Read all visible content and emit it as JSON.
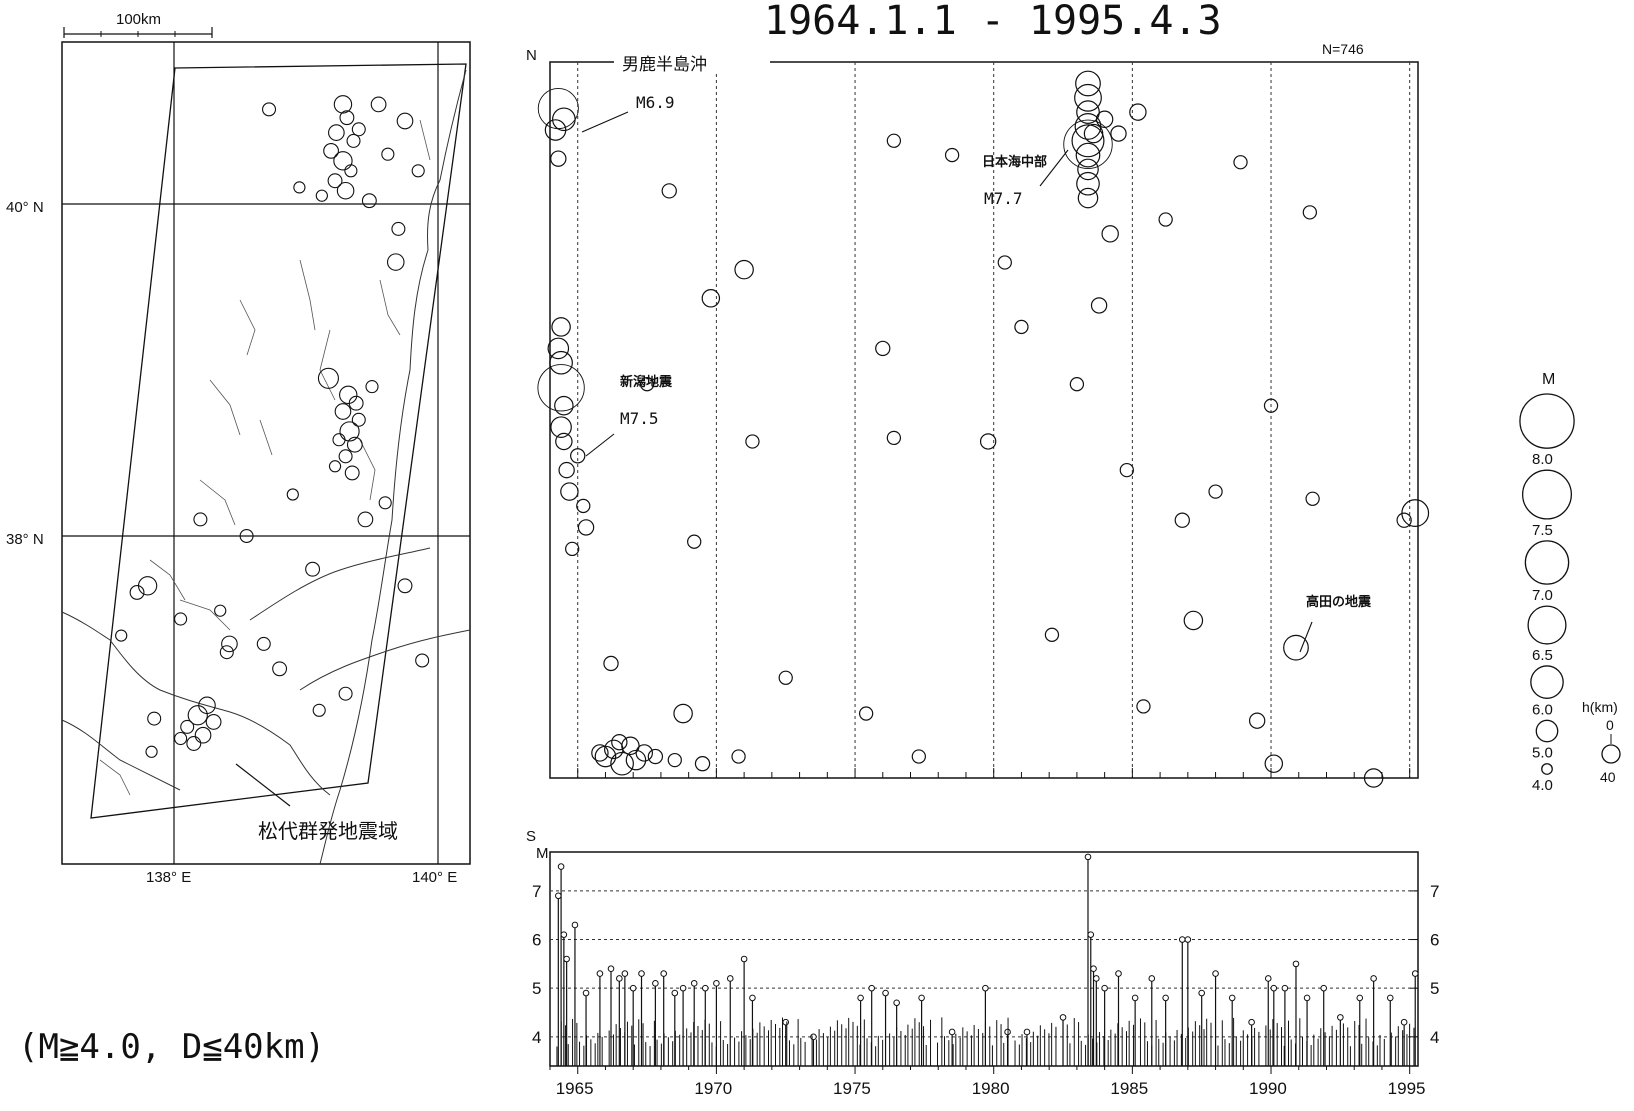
{
  "chart_data": [
    {
      "type": "scatter",
      "name": "epicenter-map",
      "scale_bar_label": "100km",
      "lat_labels": [
        "40° N",
        "38° N"
      ],
      "lon_labels": [
        "138° E",
        "140° E"
      ],
      "annotation": "松代群発地震域",
      "points": [
        {
          "lon": 139.28,
          "lat": 40.6,
          "m": 5.0
        },
        {
          "lon": 139.31,
          "lat": 40.52,
          "m": 4.6
        },
        {
          "lon": 139.23,
          "lat": 40.43,
          "m": 4.8
        },
        {
          "lon": 139.36,
          "lat": 40.38,
          "m": 4.5
        },
        {
          "lon": 139.19,
          "lat": 40.32,
          "m": 4.7
        },
        {
          "lon": 139.28,
          "lat": 40.26,
          "m": 5.1
        },
        {
          "lon": 139.34,
          "lat": 40.2,
          "m": 4.4
        },
        {
          "lon": 139.22,
          "lat": 40.14,
          "m": 4.6
        },
        {
          "lon": 139.3,
          "lat": 40.08,
          "m": 4.9
        },
        {
          "lon": 139.12,
          "lat": 40.05,
          "m": 4.3
        },
        {
          "lon": 139.4,
          "lat": 40.45,
          "m": 4.5
        },
        {
          "lon": 139.55,
          "lat": 40.6,
          "m": 4.7
        },
        {
          "lon": 138.72,
          "lat": 40.57,
          "m": 4.5
        },
        {
          "lon": 139.62,
          "lat": 40.3,
          "m": 4.4
        },
        {
          "lon": 138.95,
          "lat": 40.1,
          "m": 4.3
        },
        {
          "lon": 139.75,
          "lat": 40.5,
          "m": 4.8
        },
        {
          "lon": 139.48,
          "lat": 40.02,
          "m": 4.6
        },
        {
          "lon": 139.7,
          "lat": 39.85,
          "m": 4.5
        },
        {
          "lon": 139.85,
          "lat": 40.2,
          "m": 4.4
        },
        {
          "lon": 139.68,
          "lat": 39.65,
          "m": 4.9
        },
        {
          "lon": 139.32,
          "lat": 38.85,
          "m": 5.0
        },
        {
          "lon": 139.38,
          "lat": 38.8,
          "m": 4.6
        },
        {
          "lon": 139.28,
          "lat": 38.75,
          "m": 4.8
        },
        {
          "lon": 139.4,
          "lat": 38.7,
          "m": 4.5
        },
        {
          "lon": 139.33,
          "lat": 38.63,
          "m": 5.2
        },
        {
          "lon": 139.25,
          "lat": 38.58,
          "m": 4.4
        },
        {
          "lon": 139.37,
          "lat": 38.55,
          "m": 4.7
        },
        {
          "lon": 139.3,
          "lat": 38.48,
          "m": 4.5
        },
        {
          "lon": 139.22,
          "lat": 38.42,
          "m": 4.3
        },
        {
          "lon": 139.35,
          "lat": 38.38,
          "m": 4.6
        },
        {
          "lon": 139.17,
          "lat": 38.95,
          "m": 5.3
        },
        {
          "lon": 139.5,
          "lat": 38.9,
          "m": 4.4
        },
        {
          "lon": 139.45,
          "lat": 38.1,
          "m": 4.7
        },
        {
          "lon": 138.55,
          "lat": 38.0,
          "m": 4.5
        },
        {
          "lon": 137.8,
          "lat": 37.7,
          "m": 5.1
        },
        {
          "lon": 137.72,
          "lat": 37.66,
          "m": 4.6
        },
        {
          "lon": 137.6,
          "lat": 37.4,
          "m": 4.3
        },
        {
          "lon": 138.42,
          "lat": 37.35,
          "m": 4.8
        },
        {
          "lon": 138.4,
          "lat": 37.3,
          "m": 4.5
        },
        {
          "lon": 138.05,
          "lat": 37.5,
          "m": 4.4
        },
        {
          "lon": 138.68,
          "lat": 37.35,
          "m": 4.5
        },
        {
          "lon": 138.8,
          "lat": 37.2,
          "m": 4.6
        },
        {
          "lon": 138.25,
          "lat": 36.98,
          "m": 4.9
        },
        {
          "lon": 138.18,
          "lat": 36.92,
          "m": 5.2
        },
        {
          "lon": 138.3,
          "lat": 36.88,
          "m": 4.7
        },
        {
          "lon": 138.1,
          "lat": 36.85,
          "m": 4.5
        },
        {
          "lon": 138.22,
          "lat": 36.8,
          "m": 4.8
        },
        {
          "lon": 138.05,
          "lat": 36.78,
          "m": 4.4
        },
        {
          "lon": 138.15,
          "lat": 36.75,
          "m": 4.6
        },
        {
          "lon": 137.85,
          "lat": 36.9,
          "m": 4.5
        },
        {
          "lon": 137.83,
          "lat": 36.7,
          "m": 4.3
        },
        {
          "lon": 139.1,
          "lat": 36.95,
          "m": 4.4
        },
        {
          "lon": 139.3,
          "lat": 37.05,
          "m": 4.5
        },
        {
          "lon": 139.75,
          "lat": 37.7,
          "m": 4.6
        },
        {
          "lon": 139.88,
          "lat": 37.25,
          "m": 4.5
        },
        {
          "lon": 138.35,
          "lat": 37.55,
          "m": 4.3
        },
        {
          "lon": 139.05,
          "lat": 37.8,
          "m": 4.6
        },
        {
          "lon": 139.6,
          "lat": 38.2,
          "m": 4.4
        },
        {
          "lon": 138.9,
          "lat": 38.25,
          "m": 4.3
        },
        {
          "lon": 138.2,
          "lat": 38.1,
          "m": 4.5
        }
      ]
    },
    {
      "type": "scatter",
      "name": "space-time-diagram",
      "title": "1964.1.1 - 1995.4.3",
      "count_label": "N=746",
      "ylabel_top": "N",
      "ylabel_bottom": "S",
      "xlim": [
        1964.0,
        1995.3
      ],
      "ylim": [
        0,
        1
      ],
      "region_label": "男鹿半島沖",
      "annotations": [
        {
          "text": "M6.9",
          "x": 1964.3,
          "y": 0.935
        },
        {
          "text": "新潟地震",
          "x": 1964.4,
          "y": 0.545
        },
        {
          "text": "M7.5",
          "x": 1964.4,
          "y": 0.545
        },
        {
          "text": "日本海中部",
          "x": 1983.4,
          "y": 0.885
        },
        {
          "text": "M7.7",
          "x": 1983.4,
          "y": 0.885
        },
        {
          "text": "高田の地震",
          "x": 1990.9,
          "y": 0.182
        }
      ],
      "points": [
        {
          "x": 1964.3,
          "y": 0.935,
          "m": 6.9
        },
        {
          "x": 1964.2,
          "y": 0.905,
          "m": 5.0
        },
        {
          "x": 1964.5,
          "y": 0.92,
          "m": 5.2
        },
        {
          "x": 1964.3,
          "y": 0.865,
          "m": 4.5
        },
        {
          "x": 1964.4,
          "y": 0.545,
          "m": 7.5
        },
        {
          "x": 1964.3,
          "y": 0.6,
          "m": 5.0
        },
        {
          "x": 1964.4,
          "y": 0.58,
          "m": 5.2
        },
        {
          "x": 1964.5,
          "y": 0.52,
          "m": 4.8
        },
        {
          "x": 1964.4,
          "y": 0.49,
          "m": 5.0
        },
        {
          "x": 1964.5,
          "y": 0.47,
          "m": 4.6
        },
        {
          "x": 1964.4,
          "y": 0.63,
          "m": 4.8
        },
        {
          "x": 1964.6,
          "y": 0.43,
          "m": 4.5
        },
        {
          "x": 1964.7,
          "y": 0.4,
          "m": 4.7
        },
        {
          "x": 1965.0,
          "y": 0.45,
          "m": 4.4
        },
        {
          "x": 1965.2,
          "y": 0.38,
          "m": 4.3
        },
        {
          "x": 1965.3,
          "y": 0.35,
          "m": 4.5
        },
        {
          "x": 1964.8,
          "y": 0.32,
          "m": 4.3
        },
        {
          "x": 1966.0,
          "y": 0.03,
          "m": 5.0
        },
        {
          "x": 1966.3,
          "y": 0.04,
          "m": 4.8
        },
        {
          "x": 1966.6,
          "y": 0.02,
          "m": 5.2
        },
        {
          "x": 1966.9,
          "y": 0.045,
          "m": 4.7
        },
        {
          "x": 1967.1,
          "y": 0.025,
          "m": 4.9
        },
        {
          "x": 1967.4,
          "y": 0.035,
          "m": 4.6
        },
        {
          "x": 1966.5,
          "y": 0.05,
          "m": 4.5
        },
        {
          "x": 1965.8,
          "y": 0.035,
          "m": 4.6
        },
        {
          "x": 1967.8,
          "y": 0.03,
          "m": 4.4
        },
        {
          "x": 1968.5,
          "y": 0.025,
          "m": 4.3
        },
        {
          "x": 1969.5,
          "y": 0.02,
          "m": 4.4
        },
        {
          "x": 1970.8,
          "y": 0.03,
          "m": 4.3
        },
        {
          "x": 1968.8,
          "y": 0.09,
          "m": 4.8
        },
        {
          "x": 1969.8,
          "y": 0.67,
          "m": 4.7
        },
        {
          "x": 1971.0,
          "y": 0.71,
          "m": 4.8
        },
        {
          "x": 1968.3,
          "y": 0.82,
          "m": 4.4
        },
        {
          "x": 1967.5,
          "y": 0.55,
          "m": 4.3
        },
        {
          "x": 1969.2,
          "y": 0.33,
          "m": 4.3
        },
        {
          "x": 1971.3,
          "y": 0.47,
          "m": 4.3
        },
        {
          "x": 1976.4,
          "y": 0.475,
          "m": 4.3
        },
        {
          "x": 1976.0,
          "y": 0.6,
          "m": 4.4
        },
        {
          "x": 1976.4,
          "y": 0.89,
          "m": 4.3
        },
        {
          "x": 1978.5,
          "y": 0.87,
          "m": 4.3
        },
        {
          "x": 1979.8,
          "y": 0.47,
          "m": 4.5
        },
        {
          "x": 1980.4,
          "y": 0.72,
          "m": 4.3
        },
        {
          "x": 1981.0,
          "y": 0.63,
          "m": 4.3
        },
        {
          "x": 1983.4,
          "y": 0.885,
          "m": 7.7
        },
        {
          "x": 1983.4,
          "y": 0.97,
          "m": 5.4
        },
        {
          "x": 1983.4,
          "y": 0.95,
          "m": 5.6
        },
        {
          "x": 1983.4,
          "y": 0.93,
          "m": 5.2
        },
        {
          "x": 1983.4,
          "y": 0.91,
          "m": 5.5
        },
        {
          "x": 1983.4,
          "y": 0.89,
          "m": 6.1
        },
        {
          "x": 1983.4,
          "y": 0.87,
          "m": 5.3
        },
        {
          "x": 1983.4,
          "y": 0.85,
          "m": 5.0
        },
        {
          "x": 1983.4,
          "y": 0.83,
          "m": 5.2
        },
        {
          "x": 1983.4,
          "y": 0.81,
          "m": 4.9
        },
        {
          "x": 1983.6,
          "y": 0.9,
          "m": 4.8
        },
        {
          "x": 1984.0,
          "y": 0.92,
          "m": 4.6
        },
        {
          "x": 1984.5,
          "y": 0.9,
          "m": 4.5
        },
        {
          "x": 1985.2,
          "y": 0.93,
          "m": 4.6
        },
        {
          "x": 1984.2,
          "y": 0.76,
          "m": 4.6
        },
        {
          "x": 1983.8,
          "y": 0.66,
          "m": 4.5
        },
        {
          "x": 1984.8,
          "y": 0.43,
          "m": 4.3
        },
        {
          "x": 1983.0,
          "y": 0.55,
          "m": 4.3
        },
        {
          "x": 1987.2,
          "y": 0.22,
          "m": 4.8
        },
        {
          "x": 1986.8,
          "y": 0.36,
          "m": 4.4
        },
        {
          "x": 1988.0,
          "y": 0.4,
          "m": 4.3
        },
        {
          "x": 1989.5,
          "y": 0.08,
          "m": 4.5
        },
        {
          "x": 1990.0,
          "y": 0.52,
          "m": 4.3
        },
        {
          "x": 1990.1,
          "y": 0.02,
          "m": 4.7
        },
        {
          "x": 1990.9,
          "y": 0.182,
          "m": 5.4
        },
        {
          "x": 1991.5,
          "y": 0.39,
          "m": 4.3
        },
        {
          "x": 1991.4,
          "y": 0.79,
          "m": 4.3
        },
        {
          "x": 1993.7,
          "y": -0.01,
          "m": 4.8
        },
        {
          "x": 1995.2,
          "y": 0.37,
          "m": 5.6
        },
        {
          "x": 1994.8,
          "y": 0.36,
          "m": 4.4
        },
        {
          "x": 1966.2,
          "y": 0.16,
          "m": 4.4
        },
        {
          "x": 1972.5,
          "y": 0.14,
          "m": 4.3
        },
        {
          "x": 1975.4,
          "y": 0.09,
          "m": 4.3
        },
        {
          "x": 1977.3,
          "y": 0.03,
          "m": 4.3
        },
        {
          "x": 1982.1,
          "y": 0.2,
          "m": 4.3
        },
        {
          "x": 1985.4,
          "y": 0.1,
          "m": 4.3
        },
        {
          "x": 1986.2,
          "y": 0.78,
          "m": 4.3
        },
        {
          "x": 1988.9,
          "y": 0.86,
          "m": 4.3
        }
      ]
    },
    {
      "type": "bar",
      "name": "magnitude-time-plot",
      "ylabel": "M",
      "xlim": [
        1964.0,
        1995.3
      ],
      "ylim": [
        3.4,
        7.8
      ],
      "yticks": [
        "4",
        "5",
        "6",
        "7"
      ],
      "xticks": [
        "1965",
        "1970",
        "1975",
        "1980",
        "1985",
        "1990",
        "1995"
      ],
      "stems": [
        {
          "x": 1964.3,
          "m": 6.9
        },
        {
          "x": 1964.4,
          "m": 7.5
        },
        {
          "x": 1964.5,
          "m": 6.1
        },
        {
          "x": 1964.6,
          "m": 5.6
        },
        {
          "x": 1964.9,
          "m": 6.3
        },
        {
          "x": 1965.3,
          "m": 4.9
        },
        {
          "x": 1965.8,
          "m": 5.3
        },
        {
          "x": 1966.2,
          "m": 5.4
        },
        {
          "x": 1966.5,
          "m": 5.2
        },
        {
          "x": 1966.7,
          "m": 5.3
        },
        {
          "x": 1967.0,
          "m": 5.0
        },
        {
          "x": 1967.3,
          "m": 5.3
        },
        {
          "x": 1967.8,
          "m": 5.1
        },
        {
          "x": 1968.1,
          "m": 5.3
        },
        {
          "x": 1968.5,
          "m": 4.9
        },
        {
          "x": 1968.8,
          "m": 5.0
        },
        {
          "x": 1969.2,
          "m": 5.1
        },
        {
          "x": 1969.6,
          "m": 5.0
        },
        {
          "x": 1970.0,
          "m": 5.1
        },
        {
          "x": 1970.5,
          "m": 5.2
        },
        {
          "x": 1971.0,
          "m": 5.6
        },
        {
          "x": 1971.3,
          "m": 4.8
        },
        {
          "x": 1972.5,
          "m": 4.3
        },
        {
          "x": 1973.5,
          "m": 4.0
        },
        {
          "x": 1975.2,
          "m": 4.8
        },
        {
          "x": 1975.6,
          "m": 5.0
        },
        {
          "x": 1976.1,
          "m": 4.9
        },
        {
          "x": 1976.5,
          "m": 4.7
        },
        {
          "x": 1977.4,
          "m": 4.8
        },
        {
          "x": 1978.5,
          "m": 4.1
        },
        {
          "x": 1979.7,
          "m": 5.0
        },
        {
          "x": 1980.5,
          "m": 4.1
        },
        {
          "x": 1981.2,
          "m": 4.1
        },
        {
          "x": 1982.5,
          "m": 4.4
        },
        {
          "x": 1983.4,
          "m": 7.7
        },
        {
          "x": 1983.5,
          "m": 6.1
        },
        {
          "x": 1983.6,
          "m": 5.4
        },
        {
          "x": 1983.7,
          "m": 5.2
        },
        {
          "x": 1984.0,
          "m": 5.0
        },
        {
          "x": 1984.5,
          "m": 5.3
        },
        {
          "x": 1985.1,
          "m": 4.8
        },
        {
          "x": 1985.7,
          "m": 5.2
        },
        {
          "x": 1986.2,
          "m": 4.8
        },
        {
          "x": 1986.8,
          "m": 6.0
        },
        {
          "x": 1987.0,
          "m": 6.0
        },
        {
          "x": 1987.5,
          "m": 4.9
        },
        {
          "x": 1988.0,
          "m": 5.3
        },
        {
          "x": 1988.6,
          "m": 4.8
        },
        {
          "x": 1989.3,
          "m": 4.3
        },
        {
          "x": 1989.9,
          "m": 5.2
        },
        {
          "x": 1990.1,
          "m": 5.0
        },
        {
          "x": 1990.5,
          "m": 5.0
        },
        {
          "x": 1990.9,
          "m": 5.5
        },
        {
          "x": 1991.3,
          "m": 4.8
        },
        {
          "x": 1991.9,
          "m": 5.0
        },
        {
          "x": 1992.5,
          "m": 4.4
        },
        {
          "x": 1993.2,
          "m": 4.8
        },
        {
          "x": 1993.7,
          "m": 5.2
        },
        {
          "x": 1994.3,
          "m": 4.8
        },
        {
          "x": 1994.8,
          "m": 4.3
        },
        {
          "x": 1995.2,
          "m": 5.3
        }
      ]
    },
    {
      "type": "scatter",
      "name": "legend",
      "magnitude_header": "M",
      "magnitude_levels": [
        {
          "label": "8.0",
          "m": 8.0
        },
        {
          "label": "7.5",
          "m": 7.5
        },
        {
          "label": "7.0",
          "m": 7.0
        },
        {
          "label": "6.5",
          "m": 6.5
        },
        {
          "label": "6.0",
          "m": 6.0
        },
        {
          "label": "5.0",
          "m": 5.0
        },
        {
          "label": "4.0",
          "m": 4.0
        }
      ],
      "depth_header": "h(km)",
      "depth_top": "0",
      "depth_bottom": "40"
    }
  ],
  "condition_text": "(M≧4.0, D≦40km)"
}
